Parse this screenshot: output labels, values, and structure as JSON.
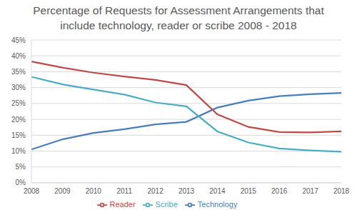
{
  "chart_data": {
    "type": "line",
    "title": "Percentage of Requests for Assessment Arrangements that\ninclude technology, reader or scribe 2008 - 2018",
    "categories": [
      "2008",
      "2009",
      "2010",
      "2011",
      "2012",
      "2013",
      "2014",
      "2015",
      "2016",
      "2017",
      "2018"
    ],
    "series": [
      {
        "name": "Technology",
        "color": "#4a7ebb",
        "values": [
          10.5,
          13.7,
          15.7,
          16.9,
          18.4,
          19.2,
          23.7,
          25.9,
          27.3,
          27.9,
          28.3
        ]
      },
      {
        "name": "Reader",
        "color": "#be4b48",
        "values": [
          38.2,
          36.3,
          34.7,
          33.5,
          32.4,
          30.8,
          21.6,
          17.6,
          16.0,
          15.9,
          16.2
        ]
      },
      {
        "name": "Scribe",
        "color": "#4bacc6",
        "values": [
          33.4,
          31.0,
          29.4,
          27.8,
          25.3,
          24.1,
          16.2,
          12.7,
          10.8,
          10.2,
          9.8
        ]
      }
    ],
    "ylim": [
      0,
      45
    ],
    "yticks": [
      {
        "value": 0,
        "label": "0%"
      },
      {
        "value": 5,
        "label": "5%"
      },
      {
        "value": 10,
        "label": "10%"
      },
      {
        "value": 15,
        "label": "15%"
      },
      {
        "value": 20,
        "label": "20%"
      },
      {
        "value": 25,
        "label": "25%"
      },
      {
        "value": 30,
        "label": "30%"
      },
      {
        "value": 35,
        "label": "35%"
      },
      {
        "value": 40,
        "label": "40%"
      },
      {
        "value": 45,
        "label": "45%"
      }
    ],
    "grid": true,
    "legend": "bottom"
  }
}
